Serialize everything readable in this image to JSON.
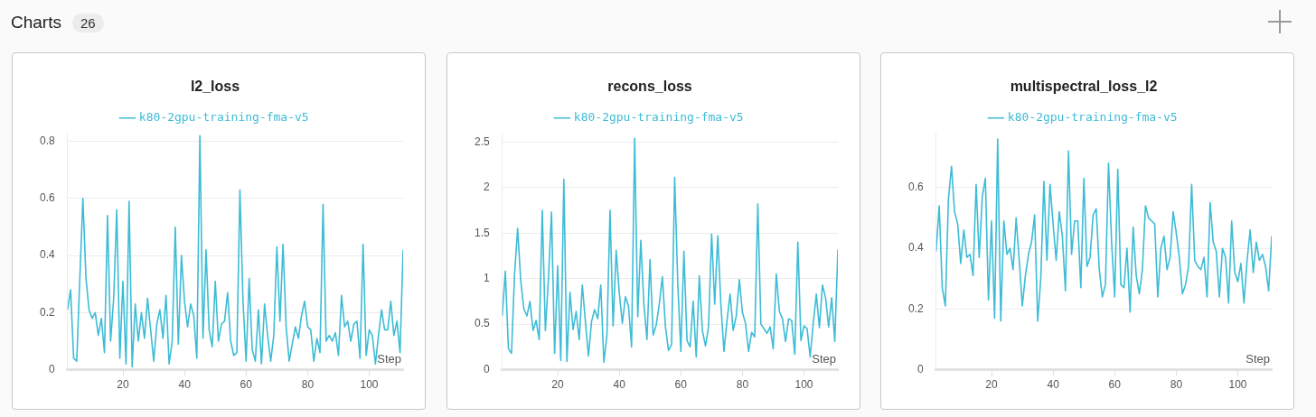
{
  "chart_data": [
    {
      "type": "other",
      "title": "Charts",
      "annotations": [
        "26"
      ]
    },
    {
      "type": "line",
      "title": "l2_loss",
      "xlabel": "Step",
      "legend": "top",
      "grid": "y",
      "marker": "none",
      "line_style": "solid",
      "xlim": [
        2,
        111
      ],
      "xticks": [
        20,
        40,
        60,
        80,
        100
      ],
      "ylim": [
        0,
        0.83
      ],
      "yticks": [
        0,
        0.2,
        0.4,
        0.6,
        0.8
      ],
      "x": [
        2,
        3,
        4,
        5,
        6,
        7,
        8,
        9,
        10,
        11,
        12,
        13,
        14,
        15,
        16,
        17,
        18,
        19,
        20,
        21,
        22,
        23,
        24,
        25,
        26,
        27,
        28,
        29,
        30,
        31,
        32,
        33,
        34,
        35,
        36,
        37,
        38,
        39,
        40,
        41,
        42,
        43,
        44,
        45,
        46,
        47,
        48,
        49,
        50,
        51,
        52,
        53,
        54,
        55,
        56,
        57,
        58,
        59,
        60,
        61,
        62,
        63,
        64,
        65,
        66,
        67,
        68,
        69,
        70,
        71,
        72,
        73,
        74,
        75,
        76,
        77,
        78,
        79,
        80,
        81,
        82,
        83,
        84,
        85,
        86,
        87,
        88,
        89,
        90,
        91,
        92,
        93,
        94,
        95,
        96,
        97,
        98,
        99,
        100,
        101,
        102,
        103,
        104,
        105,
        106,
        107,
        108,
        109,
        110,
        111
      ],
      "series": [
        {
          "name": "k80-2gpu-training-fma-v5",
          "color": "#3dbcd6",
          "values": [
            0.21,
            0.28,
            0.04,
            0.03,
            0.32,
            0.6,
            0.32,
            0.21,
            0.18,
            0.2,
            0.12,
            0.18,
            0.06,
            0.54,
            0.1,
            0.25,
            0.56,
            0.04,
            0.31,
            0.02,
            0.59,
            0.01,
            0.23,
            0.1,
            0.2,
            0.11,
            0.25,
            0.14,
            0.03,
            0.16,
            0.21,
            0.11,
            0.26,
            0.02,
            0.1,
            0.5,
            0.09,
            0.4,
            0.24,
            0.15,
            0.23,
            0.19,
            0.04,
            0.82,
            0.11,
            0.42,
            0.14,
            0.08,
            0.31,
            0.1,
            0.16,
            0.17,
            0.27,
            0.1,
            0.05,
            0.06,
            0.63,
            0.24,
            0.03,
            0.32,
            0.07,
            0.03,
            0.21,
            0.02,
            0.23,
            0.12,
            0.03,
            0.12,
            0.43,
            0.17,
            0.44,
            0.15,
            0.03,
            0.09,
            0.15,
            0.11,
            0.19,
            0.24,
            0.15,
            0.14,
            0.03,
            0.11,
            0.06,
            0.58,
            0.1,
            0.12,
            0.1,
            0.13,
            0.05,
            0.26,
            0.15,
            0.17,
            0.1,
            0.16,
            0.17,
            0.04,
            0.44,
            0.05,
            0.14,
            0.12,
            0.02,
            0.12,
            0.21,
            0.14,
            0.14,
            0.24,
            0.12,
            0.17,
            0.06,
            0.42
          ]
        }
      ]
    },
    {
      "type": "line",
      "title": "recons_loss",
      "xlabel": "Step",
      "legend": "top",
      "grid": "y",
      "marker": "none",
      "line_style": "solid",
      "xlim": [
        2,
        111
      ],
      "xticks": [
        20,
        40,
        60,
        80,
        100
      ],
      "ylim": [
        0,
        2.6
      ],
      "yticks": [
        0,
        0.5,
        1,
        1.5,
        2,
        2.5
      ],
      "x": [
        2,
        3,
        4,
        5,
        6,
        7,
        8,
        9,
        10,
        11,
        12,
        13,
        14,
        15,
        16,
        17,
        18,
        19,
        20,
        21,
        22,
        23,
        24,
        25,
        26,
        27,
        28,
        29,
        30,
        31,
        32,
        33,
        34,
        35,
        36,
        37,
        38,
        39,
        40,
        41,
        42,
        43,
        44,
        45,
        46,
        47,
        48,
        49,
        50,
        51,
        52,
        53,
        54,
        55,
        56,
        57,
        58,
        59,
        60,
        61,
        62,
        63,
        64,
        65,
        66,
        67,
        68,
        69,
        70,
        71,
        72,
        73,
        74,
        75,
        76,
        77,
        78,
        79,
        80,
        81,
        82,
        83,
        84,
        85,
        86,
        87,
        88,
        89,
        90,
        91,
        92,
        93,
        94,
        95,
        96,
        97,
        98,
        99,
        100,
        101,
        102,
        103,
        104,
        105,
        106,
        107,
        108,
        109,
        110,
        111
      ],
      "series": [
        {
          "name": "k80-2gpu-training-fma-v5",
          "color": "#3dbcd6",
          "values": [
            0.59,
            1.08,
            0.23,
            0.18,
            1.05,
            1.55,
            0.98,
            0.67,
            0.59,
            0.75,
            0.43,
            0.54,
            0.33,
            1.75,
            0.43,
            1.0,
            1.73,
            0.18,
            1.14,
            0.1,
            2.09,
            0.09,
            0.85,
            0.44,
            0.64,
            0.33,
            0.93,
            0.53,
            0.15,
            0.53,
            0.66,
            0.56,
            0.93,
            0.08,
            0.38,
            1.75,
            0.48,
            1.31,
            0.85,
            0.51,
            0.8,
            0.7,
            0.25,
            2.54,
            0.58,
            1.42,
            0.72,
            0.33,
            1.21,
            0.38,
            0.49,
            0.72,
            1.02,
            0.47,
            0.21,
            0.28,
            2.11,
            0.95,
            0.2,
            1.3,
            0.32,
            0.25,
            0.75,
            0.14,
            1.03,
            0.43,
            0.26,
            0.47,
            1.49,
            0.72,
            1.47,
            0.72,
            0.2,
            0.54,
            0.83,
            0.43,
            0.59,
            0.99,
            0.63,
            0.51,
            0.2,
            0.41,
            0.36,
            1.82,
            0.5,
            0.45,
            0.4,
            0.47,
            0.23,
            1.05,
            0.64,
            0.56,
            0.31,
            0.56,
            0.54,
            0.17,
            1.4,
            0.32,
            0.48,
            0.45,
            0.14,
            0.51,
            0.83,
            0.46,
            0.93,
            0.79,
            0.47,
            0.79,
            0.31,
            1.32
          ]
        }
      ]
    },
    {
      "type": "line",
      "title": "multispectral_loss_l2",
      "xlabel": "Step",
      "legend": "top",
      "grid": "y",
      "marker": "none",
      "line_style": "solid",
      "xlim": [
        2,
        111
      ],
      "xticks": [
        20,
        40,
        60,
        80,
        100
      ],
      "ylim": [
        0,
        0.78
      ],
      "yticks": [
        0,
        0.2,
        0.4,
        0.6
      ],
      "x": [
        2,
        3,
        4,
        5,
        6,
        7,
        8,
        9,
        10,
        11,
        12,
        13,
        14,
        15,
        16,
        17,
        18,
        19,
        20,
        21,
        22,
        23,
        24,
        25,
        26,
        27,
        28,
        29,
        30,
        31,
        32,
        33,
        34,
        35,
        36,
        37,
        38,
        39,
        40,
        41,
        42,
        43,
        44,
        45,
        46,
        47,
        48,
        49,
        50,
        51,
        52,
        53,
        54,
        55,
        56,
        57,
        58,
        59,
        60,
        61,
        62,
        63,
        64,
        65,
        66,
        67,
        68,
        69,
        70,
        71,
        72,
        73,
        74,
        75,
        76,
        77,
        78,
        79,
        80,
        81,
        82,
        83,
        84,
        85,
        86,
        87,
        88,
        89,
        90,
        91,
        92,
        93,
        94,
        95,
        96,
        97,
        98,
        99,
        100,
        101,
        102,
        103,
        104,
        105,
        106,
        107,
        108,
        109,
        110,
        111
      ],
      "series": [
        {
          "name": "k80-2gpu-training-fma-v5",
          "color": "#3dbcd6",
          "values": [
            0.39,
            0.54,
            0.27,
            0.21,
            0.56,
            0.67,
            0.52,
            0.48,
            0.35,
            0.46,
            0.37,
            0.38,
            0.31,
            0.61,
            0.37,
            0.57,
            0.63,
            0.23,
            0.49,
            0.17,
            0.76,
            0.16,
            0.49,
            0.38,
            0.4,
            0.33,
            0.5,
            0.36,
            0.21,
            0.31,
            0.38,
            0.42,
            0.51,
            0.16,
            0.3,
            0.62,
            0.36,
            0.61,
            0.48,
            0.36,
            0.52,
            0.44,
            0.26,
            0.72,
            0.38,
            0.49,
            0.49,
            0.27,
            0.63,
            0.34,
            0.37,
            0.51,
            0.53,
            0.33,
            0.24,
            0.28,
            0.68,
            0.42,
            0.24,
            0.66,
            0.28,
            0.27,
            0.4,
            0.19,
            0.47,
            0.31,
            0.25,
            0.33,
            0.54,
            0.5,
            0.49,
            0.48,
            0.24,
            0.4,
            0.44,
            0.33,
            0.37,
            0.52,
            0.45,
            0.37,
            0.25,
            0.28,
            0.34,
            0.61,
            0.36,
            0.34,
            0.33,
            0.37,
            0.24,
            0.55,
            0.42,
            0.39,
            0.24,
            0.4,
            0.37,
            0.22,
            0.49,
            0.32,
            0.29,
            0.35,
            0.22,
            0.36,
            0.46,
            0.32,
            0.42,
            0.36,
            0.38,
            0.34,
            0.26,
            0.44
          ]
        }
      ]
    }
  ]
}
